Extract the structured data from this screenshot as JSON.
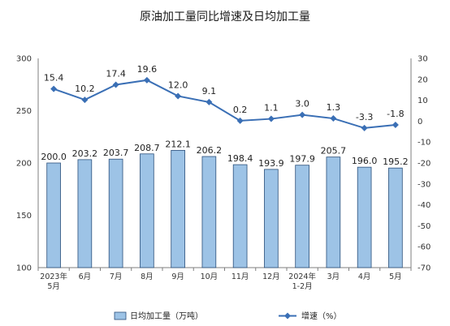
{
  "chart_data": {
    "type": "bar",
    "title": "原油加工量同比增速及日均加工量",
    "categories": [
      [
        "2023年",
        "5月"
      ],
      [
        "6月"
      ],
      [
        "7月"
      ],
      [
        "8月"
      ],
      [
        "9月"
      ],
      [
        "10月"
      ],
      [
        "11月"
      ],
      [
        "12月"
      ],
      [
        "2024年",
        "1-2月"
      ],
      [
        "3月"
      ],
      [
        "4月"
      ],
      [
        "5月"
      ]
    ],
    "series": [
      {
        "name": "日均加工量（万吨）",
        "type": "bar",
        "axis": "left",
        "color": "#9dc3e6",
        "values": [
          200.0,
          203.2,
          203.7,
          208.7,
          212.1,
          206.2,
          198.4,
          193.9,
          197.9,
          205.7,
          196.0,
          195.2
        ],
        "labels": [
          "200.0",
          "203.2",
          "203.7",
          "208.7",
          "212.1",
          "206.2",
          "198.4",
          "193.9",
          "197.9",
          "205.7",
          "196.0",
          "195.2"
        ]
      },
      {
        "name": "增速（%）",
        "type": "line",
        "axis": "right",
        "color": "#3a6fb5",
        "values": [
          15.4,
          10.2,
          17.4,
          19.6,
          12.0,
          9.1,
          0.2,
          1.1,
          3.0,
          1.3,
          -3.3,
          -1.8
        ],
        "labels": [
          "15.4",
          "10.2",
          "17.4",
          "19.6",
          "12.0",
          "9.1",
          "0.2",
          "1.1",
          "3.0",
          "1.3",
          "-3.3",
          "-1.8"
        ]
      }
    ],
    "left_axis": {
      "ylim": [
        100,
        300
      ],
      "ticks": [
        100,
        150,
        200,
        250,
        300
      ]
    },
    "right_axis": {
      "ylim": [
        -70,
        30
      ],
      "ticks": [
        30,
        20,
        10,
        0,
        -10,
        -20,
        -30,
        -40,
        -50,
        -60,
        -70
      ]
    },
    "grid": false,
    "legend": "bottom"
  }
}
